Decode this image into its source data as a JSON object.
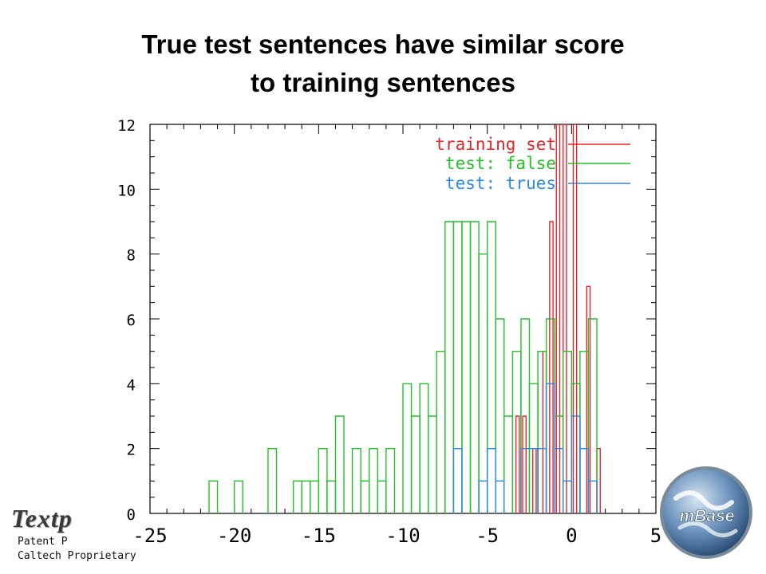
{
  "title_line1": "True test sentences have similar score",
  "title_line2": "to training sentences",
  "logo_left_text": "Textp",
  "footer_line1": "Patent P",
  "footer_line2": "Caltech Proprietary",
  "logo_right_text": "mBase",
  "chart_data": {
    "type": "histogram",
    "title": "True test sentences have similar score to training sentences",
    "xlim": [
      -25,
      5
    ],
    "ylim": [
      0,
      12
    ],
    "x_ticks": [
      -25,
      -20,
      -15,
      -10,
      -5,
      0,
      5
    ],
    "y_ticks": [
      0,
      2,
      4,
      6,
      8,
      10,
      12
    ],
    "legend_placement": "top-right",
    "grid": false,
    "series": [
      {
        "name": "training set",
        "color": "#e8242a",
        "bins": [
          {
            "x0": -3.3,
            "x1": -3.1,
            "y": 3
          },
          {
            "x0": -3.1,
            "x1": -2.9,
            "y": 0
          },
          {
            "x0": -2.9,
            "x1": -2.7,
            "y": 3
          },
          {
            "x0": -2.7,
            "x1": -2.5,
            "y": 0
          },
          {
            "x0": -2.3,
            "x1": -2.1,
            "y": 2
          },
          {
            "x0": -2.1,
            "x1": -1.9,
            "y": 0
          },
          {
            "x0": -1.7,
            "x1": -1.5,
            "y": 5
          },
          {
            "x0": -1.5,
            "x1": -1.3,
            "y": 0
          },
          {
            "x0": -1.3,
            "x1": -1.1,
            "y": 9
          },
          {
            "x0": -1.1,
            "x1": -0.9,
            "y": 0
          },
          {
            "x0": -0.9,
            "x1": -0.7,
            "y": 12
          },
          {
            "x0": -0.7,
            "x1": -0.5,
            "y": 0
          },
          {
            "x0": -0.5,
            "x1": -0.3,
            "y": 12
          },
          {
            "x0": -0.3,
            "x1": -0.1,
            "y": 0
          },
          {
            "x0": 0.1,
            "x1": 0.3,
            "y": 12
          },
          {
            "x0": 0.3,
            "x1": 0.5,
            "y": 0
          },
          {
            "x0": 0.9,
            "x1": 1.1,
            "y": 7
          },
          {
            "x0": 1.1,
            "x1": 1.3,
            "y": 0
          },
          {
            "x0": 1.5,
            "x1": 1.7,
            "y": 2
          },
          {
            "x0": 1.7,
            "x1": 1.9,
            "y": 0
          }
        ]
      },
      {
        "name": "test: false",
        "color": "#22c22a",
        "bins": [
          {
            "x0": -21.5,
            "x1": -21.0,
            "y": 1
          },
          {
            "x0": -21.0,
            "x1": -20.0,
            "y": 0
          },
          {
            "x0": -20.0,
            "x1": -19.5,
            "y": 1
          },
          {
            "x0": -19.5,
            "x1": -18.0,
            "y": 0
          },
          {
            "x0": -18.0,
            "x1": -17.5,
            "y": 2
          },
          {
            "x0": -17.5,
            "x1": -16.5,
            "y": 0
          },
          {
            "x0": -16.5,
            "x1": -16.0,
            "y": 1
          },
          {
            "x0": -16.0,
            "x1": -15.5,
            "y": 1
          },
          {
            "x0": -15.5,
            "x1": -15.0,
            "y": 1
          },
          {
            "x0": -15.0,
            "x1": -14.5,
            "y": 2
          },
          {
            "x0": -14.5,
            "x1": -14.0,
            "y": 1
          },
          {
            "x0": -14.0,
            "x1": -13.5,
            "y": 3
          },
          {
            "x0": -13.5,
            "x1": -13.0,
            "y": 0
          },
          {
            "x0": -13.0,
            "x1": -12.5,
            "y": 2
          },
          {
            "x0": -12.5,
            "x1": -12.0,
            "y": 1
          },
          {
            "x0": -12.0,
            "x1": -11.5,
            "y": 2
          },
          {
            "x0": -11.5,
            "x1": -11.0,
            "y": 1
          },
          {
            "x0": -11.0,
            "x1": -10.5,
            "y": 2
          },
          {
            "x0": -10.5,
            "x1": -10.0,
            "y": 0
          },
          {
            "x0": -10.0,
            "x1": -9.5,
            "y": 4
          },
          {
            "x0": -9.5,
            "x1": -9.0,
            "y": 3
          },
          {
            "x0": -9.0,
            "x1": -8.5,
            "y": 4
          },
          {
            "x0": -8.5,
            "x1": -8.0,
            "y": 3
          },
          {
            "x0": -8.0,
            "x1": -7.5,
            "y": 5
          },
          {
            "x0": -7.5,
            "x1": -7.0,
            "y": 9
          },
          {
            "x0": -7.0,
            "x1": -6.5,
            "y": 9
          },
          {
            "x0": -6.5,
            "x1": -6.0,
            "y": 9
          },
          {
            "x0": -6.0,
            "x1": -5.5,
            "y": 9
          },
          {
            "x0": -5.5,
            "x1": -5.0,
            "y": 8
          },
          {
            "x0": -5.0,
            "x1": -4.5,
            "y": 9
          },
          {
            "x0": -4.5,
            "x1": -4.0,
            "y": 6
          },
          {
            "x0": -4.0,
            "x1": -3.5,
            "y": 3
          },
          {
            "x0": -3.5,
            "x1": -3.0,
            "y": 5
          },
          {
            "x0": -3.0,
            "x1": -2.5,
            "y": 6
          },
          {
            "x0": -2.5,
            "x1": -2.0,
            "y": 4
          },
          {
            "x0": -2.0,
            "x1": -1.5,
            "y": 5
          },
          {
            "x0": -1.5,
            "x1": -1.0,
            "y": 6
          },
          {
            "x0": -1.0,
            "x1": -0.5,
            "y": 3
          },
          {
            "x0": -0.5,
            "x1": 0.0,
            "y": 5
          },
          {
            "x0": 0.0,
            "x1": 0.5,
            "y": 4
          },
          {
            "x0": 0.5,
            "x1": 1.0,
            "y": 5
          },
          {
            "x0": 1.0,
            "x1": 1.5,
            "y": 6
          }
        ]
      },
      {
        "name": "test: trues",
        "color": "#2a8ae8",
        "bins": [
          {
            "x0": -7.0,
            "x1": -6.5,
            "y": 2
          },
          {
            "x0": -6.5,
            "x1": -5.5,
            "y": 0
          },
          {
            "x0": -5.5,
            "x1": -5.0,
            "y": 1
          },
          {
            "x0": -5.0,
            "x1": -4.5,
            "y": 2
          },
          {
            "x0": -4.5,
            "x1": -4.0,
            "y": 1
          },
          {
            "x0": -4.0,
            "x1": -3.5,
            "y": 0
          },
          {
            "x0": -3.0,
            "x1": -2.0,
            "y": 2
          },
          {
            "x0": -2.0,
            "x1": -1.5,
            "y": 2
          },
          {
            "x0": -1.5,
            "x1": -1.0,
            "y": 4
          },
          {
            "x0": -1.0,
            "x1": -0.5,
            "y": 2
          },
          {
            "x0": -0.5,
            "x1": 0.0,
            "y": 1
          },
          {
            "x0": 0.0,
            "x1": 0.5,
            "y": 3
          },
          {
            "x0": 0.5,
            "x1": 1.0,
            "y": 2
          },
          {
            "x0": 1.0,
            "x1": 1.5,
            "y": 1
          }
        ]
      }
    ]
  }
}
